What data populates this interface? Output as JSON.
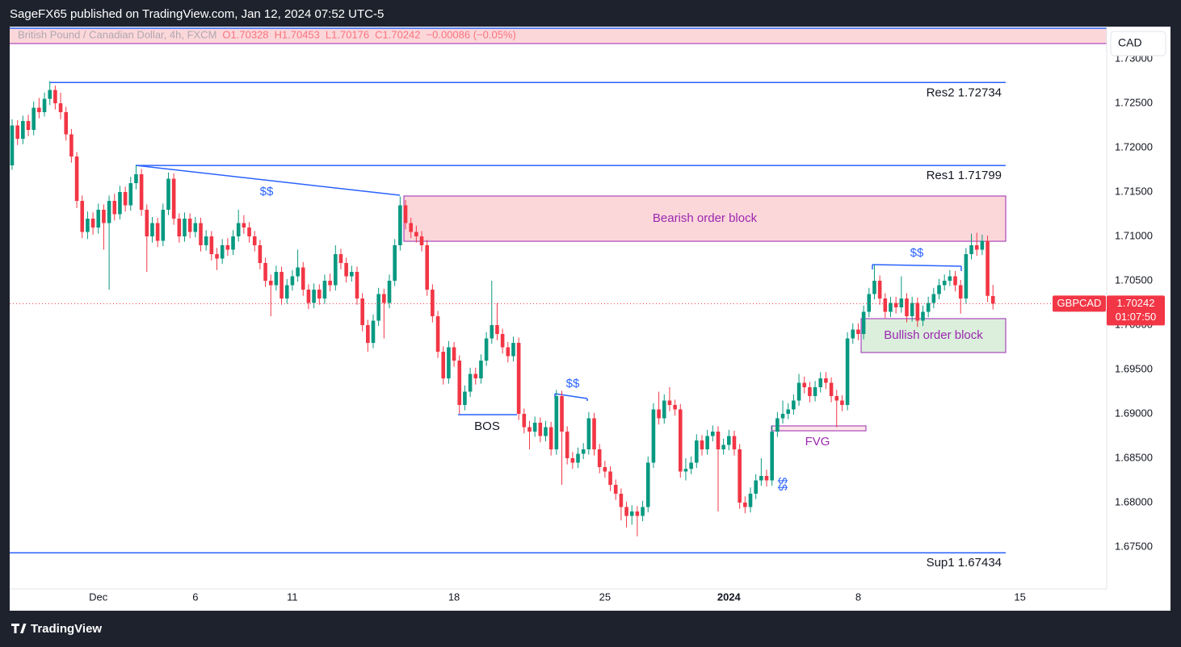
{
  "header": {
    "publisher": "SageFX65 published on TradingView.com, Jan 12, 2024 07:52 UTC-5",
    "brand": "TradingView"
  },
  "chart_data": {
    "type": "candlestick",
    "currency": "CAD",
    "legend": [
      "British Pound / Canadian Dollar, 4h, FXCM",
      "O1.70328",
      "H1.70453",
      "L1.70176",
      "C1.70242",
      "−0.00086 (−0.05%)"
    ],
    "up_color": "#089981",
    "down_color": "#f23645",
    "ylim": [
      1.67027,
      1.73364
    ],
    "yticks": [
      {
        "value": 1.675,
        "label": "1.67500"
      },
      {
        "value": 1.68,
        "label": "1.68000"
      },
      {
        "value": 1.685,
        "label": "1.68500"
      },
      {
        "value": 1.69,
        "label": "1.69000"
      },
      {
        "value": 1.695,
        "label": "1.69500"
      },
      {
        "value": 1.7,
        "label": "1.70000"
      },
      {
        "value": 1.705,
        "label": "1.70500"
      },
      {
        "value": 1.71,
        "label": "1.71000"
      },
      {
        "value": 1.715,
        "label": "1.71500"
      },
      {
        "value": 1.72,
        "label": "1.72000"
      },
      {
        "value": 1.725,
        "label": "1.72500"
      },
      {
        "value": 1.73,
        "label": "1.73000"
      }
    ],
    "xlim": [
      -0.45,
      203.1
    ],
    "xticks": [
      {
        "value": 16,
        "label": "Dec"
      },
      {
        "value": 34,
        "label": "6"
      },
      {
        "value": 52,
        "label": "11"
      },
      {
        "value": 82,
        "label": "18"
      },
      {
        "value": 110,
        "label": "25"
      },
      {
        "value": 133,
        "label": "2024"
      },
      {
        "value": 157,
        "label": "8"
      },
      {
        "value": 187,
        "label": "15"
      }
    ],
    "last_price": {
      "symbol": "GBPCAD",
      "value": 1.70242,
      "label": "1.70242",
      "countdown": "01:07:50"
    },
    "levels": [
      {
        "label": "Res2 1.72734",
        "value": 1.72734
      },
      {
        "label": "Res1 1.71799",
        "value": 1.71799
      },
      {
        "label": "Sup1 1.67434",
        "value": 1.67434
      }
    ],
    "zones": [
      {
        "label": "Bearish order block",
        "top": 1.71455,
        "bottom": 1.70945
      },
      {
        "label": "Bullish order block",
        "top": 1.70073,
        "bottom": 1.69691
      },
      {
        "label": "FVG",
        "top": 1.68864,
        "bottom": 1.68809
      }
    ],
    "annotations": [
      "$$",
      "$$",
      "$$",
      "$$",
      "BOS"
    ],
    "ohlc": [
      [
        1.718,
        1.7232,
        1.7175,
        1.7225
      ],
      [
        1.7225,
        1.7231,
        1.7203,
        1.721
      ],
      [
        1.721,
        1.7236,
        1.7204,
        1.723
      ],
      [
        1.723,
        1.7237,
        1.7213,
        1.722
      ],
      [
        1.722,
        1.7252,
        1.7214,
        1.7245
      ],
      [
        1.7245,
        1.7256,
        1.7233,
        1.724
      ],
      [
        1.724,
        1.7262,
        1.7235,
        1.7255
      ],
      [
        1.7255,
        1.7275,
        1.7248,
        1.7265
      ],
      [
        1.7265,
        1.727,
        1.7243,
        1.725
      ],
      [
        1.725,
        1.7262,
        1.7232,
        1.724
      ],
      [
        1.724,
        1.7246,
        1.7208,
        1.7215
      ],
      [
        1.7215,
        1.7221,
        1.7183,
        1.719
      ],
      [
        1.719,
        1.7195,
        1.7132,
        1.714
      ],
      [
        1.714,
        1.7146,
        1.7098,
        1.7105
      ],
      [
        1.7105,
        1.7128,
        1.7097,
        1.712
      ],
      [
        1.712,
        1.7127,
        1.7102,
        1.711
      ],
      [
        1.711,
        1.7137,
        1.7103,
        1.713
      ],
      [
        1.713,
        1.7136,
        1.7085,
        1.7115
      ],
      [
        1.7115,
        1.7146,
        1.704,
        1.714
      ],
      [
        1.714,
        1.7148,
        1.7118,
        1.7125
      ],
      [
        1.7125,
        1.7157,
        1.7119,
        1.715
      ],
      [
        1.715,
        1.7156,
        1.7128,
        1.7135
      ],
      [
        1.7135,
        1.7167,
        1.7129,
        1.716
      ],
      [
        1.716,
        1.718,
        1.7153,
        1.717
      ],
      [
        1.717,
        1.7176,
        1.7123,
        1.713
      ],
      [
        1.713,
        1.7136,
        1.706,
        1.71
      ],
      [
        1.71,
        1.7122,
        1.7093,
        1.7115
      ],
      [
        1.7115,
        1.7121,
        1.7088,
        1.7095
      ],
      [
        1.7095,
        1.7137,
        1.7089,
        1.713
      ],
      [
        1.713,
        1.7172,
        1.7124,
        1.7165
      ],
      [
        1.7165,
        1.7171,
        1.7113,
        1.712
      ],
      [
        1.712,
        1.7126,
        1.7093,
        1.71
      ],
      [
        1.71,
        1.7127,
        1.7094,
        1.712
      ],
      [
        1.712,
        1.7126,
        1.7098,
        1.7105
      ],
      [
        1.7105,
        1.7122,
        1.7099,
        1.7115
      ],
      [
        1.7115,
        1.7121,
        1.7083,
        1.709
      ],
      [
        1.709,
        1.7107,
        1.7084,
        1.71
      ],
      [
        1.71,
        1.7106,
        1.7073,
        1.708
      ],
      [
        1.708,
        1.7087,
        1.7062,
        1.7075
      ],
      [
        1.7075,
        1.7097,
        1.7069,
        1.709
      ],
      [
        1.709,
        1.7098,
        1.7078,
        1.7085
      ],
      [
        1.7085,
        1.7107,
        1.7079,
        1.71
      ],
      [
        1.71,
        1.713,
        1.7094,
        1.7115
      ],
      [
        1.7115,
        1.7124,
        1.7103,
        1.711
      ],
      [
        1.711,
        1.7116,
        1.7093,
        1.71
      ],
      [
        1.71,
        1.7106,
        1.7083,
        1.709
      ],
      [
        1.709,
        1.7096,
        1.7063,
        1.707
      ],
      [
        1.707,
        1.7076,
        1.7043,
        1.705
      ],
      [
        1.705,
        1.7057,
        1.701,
        1.7045
      ],
      [
        1.7045,
        1.7067,
        1.7039,
        1.706
      ],
      [
        1.706,
        1.7066,
        1.7023,
        1.703
      ],
      [
        1.703,
        1.7052,
        1.7024,
        1.7045
      ],
      [
        1.7045,
        1.7062,
        1.7039,
        1.7055
      ],
      [
        1.7055,
        1.7085,
        1.7049,
        1.7065
      ],
      [
        1.7065,
        1.7071,
        1.7033,
        1.704
      ],
      [
        1.704,
        1.7046,
        1.7018,
        1.7025
      ],
      [
        1.7025,
        1.7047,
        1.7019,
        1.704
      ],
      [
        1.704,
        1.7046,
        1.7023,
        1.703
      ],
      [
        1.703,
        1.7057,
        1.7024,
        1.705
      ],
      [
        1.705,
        1.7058,
        1.7038,
        1.7045
      ],
      [
        1.7045,
        1.709,
        1.7039,
        1.708
      ],
      [
        1.708,
        1.7086,
        1.7063,
        1.707
      ],
      [
        1.707,
        1.7076,
        1.7048,
        1.7055
      ],
      [
        1.7055,
        1.7067,
        1.7049,
        1.706
      ],
      [
        1.706,
        1.7066,
        1.7023,
        1.703
      ],
      [
        1.703,
        1.7036,
        1.6993,
        1.7
      ],
      [
        1.7,
        1.7006,
        1.697,
        1.698
      ],
      [
        1.698,
        1.7012,
        1.6974,
        1.7005
      ],
      [
        1.7005,
        1.7042,
        1.6999,
        1.7035
      ],
      [
        1.7035,
        1.7041,
        1.6985,
        1.7025
      ],
      [
        1.7025,
        1.7057,
        1.7019,
        1.705
      ],
      [
        1.705,
        1.7097,
        1.7044,
        1.709
      ],
      [
        1.709,
        1.7145,
        1.7084,
        1.7135
      ],
      [
        1.7135,
        1.7141,
        1.7108,
        1.7115
      ],
      [
        1.7115,
        1.7121,
        1.7098,
        1.7105
      ],
      [
        1.7105,
        1.7112,
        1.7093,
        1.71
      ],
      [
        1.71,
        1.7106,
        1.7083,
        1.709
      ],
      [
        1.709,
        1.7096,
        1.7033,
        1.704
      ],
      [
        1.704,
        1.7046,
        1.7003,
        1.701
      ],
      [
        1.701,
        1.7016,
        1.6963,
        1.697
      ],
      [
        1.697,
        1.6976,
        1.6933,
        1.694
      ],
      [
        1.694,
        1.6982,
        1.6934,
        1.6975
      ],
      [
        1.6975,
        1.6981,
        1.6953,
        1.696
      ],
      [
        1.696,
        1.6966,
        1.69,
        1.691
      ],
      [
        1.691,
        1.6932,
        1.6904,
        1.6925
      ],
      [
        1.6925,
        1.6952,
        1.6919,
        1.6945
      ],
      [
        1.6945,
        1.6952,
        1.6933,
        1.694
      ],
      [
        1.694,
        1.6967,
        1.6934,
        1.696
      ],
      [
        1.696,
        1.6992,
        1.6954,
        1.6985
      ],
      [
        1.6985,
        1.705,
        1.6979,
        1.7
      ],
      [
        1.7,
        1.7025,
        1.6983,
        1.699
      ],
      [
        1.699,
        1.6996,
        1.6968,
        1.6975
      ],
      [
        1.6975,
        1.6981,
        1.6958,
        1.6965
      ],
      [
        1.6965,
        1.6987,
        1.6959,
        1.698
      ],
      [
        1.698,
        1.6986,
        1.6893,
        1.69
      ],
      [
        1.69,
        1.6906,
        1.6878,
        1.6885
      ],
      [
        1.6885,
        1.6892,
        1.686,
        1.688
      ],
      [
        1.688,
        1.6897,
        1.6874,
        1.689
      ],
      [
        1.689,
        1.6896,
        1.6868,
        1.6875
      ],
      [
        1.6875,
        1.6892,
        1.6869,
        1.6885
      ],
      [
        1.6885,
        1.6891,
        1.6853,
        1.686
      ],
      [
        1.686,
        1.6927,
        1.6854,
        1.692
      ],
      [
        1.692,
        1.6926,
        1.682,
        1.688
      ],
      [
        1.688,
        1.6886,
        1.6843,
        1.685
      ],
      [
        1.685,
        1.6857,
        1.6838,
        1.6845
      ],
      [
        1.6845,
        1.6862,
        1.6839,
        1.6855
      ],
      [
        1.6855,
        1.6867,
        1.6849,
        1.686
      ],
      [
        1.686,
        1.6902,
        1.6854,
        1.6895
      ],
      [
        1.6895,
        1.6901,
        1.6853,
        1.686
      ],
      [
        1.686,
        1.6866,
        1.6833,
        1.684
      ],
      [
        1.684,
        1.6847,
        1.6828,
        1.6835
      ],
      [
        1.6835,
        1.6841,
        1.6813,
        1.682
      ],
      [
        1.682,
        1.6826,
        1.6803,
        1.681
      ],
      [
        1.681,
        1.6816,
        1.678,
        1.6795
      ],
      [
        1.6795,
        1.6801,
        1.6772,
        1.6785
      ],
      [
        1.6785,
        1.6797,
        1.6775,
        1.679
      ],
      [
        1.679,
        1.6796,
        1.6762,
        1.6785
      ],
      [
        1.6785,
        1.6802,
        1.6779,
        1.6795
      ],
      [
        1.6795,
        1.6852,
        1.6789,
        1.6845
      ],
      [
        1.6845,
        1.6912,
        1.6839,
        1.6905
      ],
      [
        1.6905,
        1.6925,
        1.6888,
        1.6895
      ],
      [
        1.6895,
        1.6922,
        1.6889,
        1.6915
      ],
      [
        1.6915,
        1.693,
        1.6903,
        1.691
      ],
      [
        1.691,
        1.6916,
        1.6898,
        1.6905
      ],
      [
        1.6905,
        1.6911,
        1.6828,
        1.6835
      ],
      [
        1.6835,
        1.685,
        1.6825,
        1.6838
      ],
      [
        1.6838,
        1.6852,
        1.6832,
        1.6845
      ],
      [
        1.6845,
        1.6877,
        1.6839,
        1.687
      ],
      [
        1.687,
        1.6876,
        1.6853,
        1.686
      ],
      [
        1.686,
        1.6882,
        1.6854,
        1.6875
      ],
      [
        1.6875,
        1.6887,
        1.6869,
        1.688
      ],
      [
        1.688,
        1.6886,
        1.679,
        1.686
      ],
      [
        1.686,
        1.6872,
        1.6854,
        1.6865
      ],
      [
        1.6865,
        1.6882,
        1.6859,
        1.6875
      ],
      [
        1.6875,
        1.6881,
        1.6853,
        1.686
      ],
      [
        1.686,
        1.6866,
        1.6793,
        1.68
      ],
      [
        1.68,
        1.6807,
        1.6788,
        1.6795
      ],
      [
        1.6795,
        1.6817,
        1.6789,
        1.681
      ],
      [
        1.681,
        1.6832,
        1.6804,
        1.6825
      ],
      [
        1.6825,
        1.685,
        1.6819,
        1.683
      ],
      [
        1.683,
        1.6837,
        1.6818,
        1.6825
      ],
      [
        1.6825,
        1.6887,
        1.6819,
        1.688
      ],
      [
        1.688,
        1.6902,
        1.6874,
        1.6895
      ],
      [
        1.6895,
        1.6915,
        1.6889,
        1.69
      ],
      [
        1.69,
        1.6912,
        1.6894,
        1.6905
      ],
      [
        1.6905,
        1.6922,
        1.6899,
        1.6915
      ],
      [
        1.6915,
        1.6945,
        1.6909,
        1.6935
      ],
      [
        1.6935,
        1.6942,
        1.6923,
        1.693
      ],
      [
        1.693,
        1.6936,
        1.6913,
        1.692
      ],
      [
        1.692,
        1.6937,
        1.6914,
        1.693
      ],
      [
        1.693,
        1.6947,
        1.6924,
        1.694
      ],
      [
        1.694,
        1.6947,
        1.6928,
        1.6935
      ],
      [
        1.6935,
        1.6941,
        1.6913,
        1.692
      ],
      [
        1.692,
        1.6927,
        1.6885,
        1.6915
      ],
      [
        1.6915,
        1.6921,
        1.6903,
        1.691
      ],
      [
        1.691,
        1.6992,
        1.6904,
        1.6985
      ],
      [
        1.6985,
        1.7002,
        1.6979,
        1.6995
      ],
      [
        1.6995,
        1.7002,
        1.6983,
        1.699
      ],
      [
        1.699,
        1.7022,
        1.6984,
        1.7015
      ],
      [
        1.7015,
        1.7042,
        1.7009,
        1.7035
      ],
      [
        1.7035,
        1.7068,
        1.7029,
        1.705
      ],
      [
        1.705,
        1.7056,
        1.7023,
        1.703
      ],
      [
        1.703,
        1.7036,
        1.7008,
        1.7015
      ],
      [
        1.7015,
        1.7032,
        1.7009,
        1.7025
      ],
      [
        1.7025,
        1.7032,
        1.7013,
        1.702
      ],
      [
        1.702,
        1.7055,
        1.7014,
        1.703
      ],
      [
        1.703,
        1.7036,
        1.7003,
        1.701
      ],
      [
        1.701,
        1.7032,
        1.7004,
        1.7025
      ],
      [
        1.7025,
        1.7031,
        1.6998,
        1.7005
      ],
      [
        1.7005,
        1.7022,
        1.6999,
        1.7015
      ],
      [
        1.7015,
        1.7032,
        1.7009,
        1.7025
      ],
      [
        1.7025,
        1.7042,
        1.7019,
        1.7035
      ],
      [
        1.7035,
        1.7052,
        1.7029,
        1.7045
      ],
      [
        1.7045,
        1.7057,
        1.7039,
        1.705
      ],
      [
        1.705,
        1.7062,
        1.7044,
        1.7055
      ],
      [
        1.7055,
        1.7061,
        1.7038,
        1.7045
      ],
      [
        1.7045,
        1.7051,
        1.7013,
        1.703
      ],
      [
        1.703,
        1.7087,
        1.7024,
        1.708
      ],
      [
        1.708,
        1.7103,
        1.7074,
        1.709
      ],
      [
        1.709,
        1.7104,
        1.7078,
        1.7085
      ],
      [
        1.7085,
        1.7102,
        1.7079,
        1.7095
      ],
      [
        1.7095,
        1.7101,
        1.7026,
        1.7033
      ],
      [
        1.70328,
        1.70453,
        1.70176,
        1.70242
      ]
    ]
  }
}
